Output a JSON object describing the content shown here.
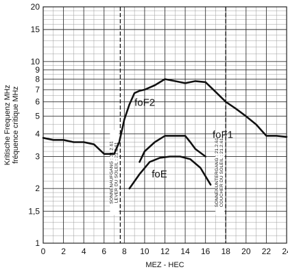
{
  "chart_data": {
    "type": "line",
    "xlabel": "MEZ - HEC",
    "ylabel_lines": [
      "Kritische Frequenz MHz",
      "fréquence critique MHz"
    ],
    "x_ticks": [
      0,
      2,
      4,
      6,
      8,
      10,
      12,
      14,
      16,
      18,
      20,
      22,
      24
    ],
    "x_tick_labels": [
      "0",
      "2",
      "4",
      "6",
      "8",
      "10",
      "12",
      "14",
      "16",
      "18",
      "20",
      "22",
      "24"
    ],
    "xlim": [
      0,
      24
    ],
    "ylim": [
      1,
      20
    ],
    "y_scale": "log",
    "y_ticks": [
      1,
      1.5,
      2,
      3,
      4,
      5,
      6,
      7,
      8,
      9,
      10,
      15,
      20
    ],
    "y_tick_labels": [
      "1",
      "1,5",
      "2",
      "3",
      "4",
      "5",
      "6",
      "7",
      "8",
      "9",
      "10",
      "15",
      "20"
    ],
    "grid": true,
    "series": [
      {
        "name": "foF2",
        "label_at": [
          9.0,
          5.7
        ],
        "x": [
          0,
          1,
          2,
          3,
          4,
          5,
          6,
          6.5,
          7,
          7.5,
          8,
          8.5,
          9,
          9.5,
          10,
          11,
          12,
          13,
          14,
          15,
          16,
          17,
          18,
          19,
          20,
          21,
          22,
          23,
          24
        ],
        "y": [
          3.8,
          3.7,
          3.7,
          3.6,
          3.6,
          3.5,
          3.1,
          3.1,
          3.1,
          3.6,
          4.8,
          5.8,
          6.7,
          6.9,
          7.0,
          7.4,
          8.0,
          7.8,
          7.6,
          7.8,
          7.7,
          6.8,
          6.0,
          5.5,
          5.0,
          4.5,
          3.9,
          3.9,
          3.85
        ]
      },
      {
        "name": "foF1",
        "label_at": [
          16.7,
          3.8
        ],
        "x": [
          9.5,
          10,
          11,
          12,
          13,
          14,
          14.5,
          15,
          16
        ],
        "y": [
          2.8,
          3.2,
          3.6,
          3.9,
          3.9,
          3.9,
          3.6,
          3.3,
          3.0
        ]
      },
      {
        "name": "foE",
        "label_at": [
          10.7,
          2.3
        ],
        "x": [
          8.5,
          9.5,
          10.5,
          11.5,
          12.5,
          13.5,
          14.5,
          15.5,
          16.5
        ],
        "y": [
          2.0,
          2.4,
          2.8,
          2.95,
          3.0,
          3.0,
          2.9,
          2.6,
          2.1
        ]
      }
    ],
    "markers": [
      {
        "x": 7.6,
        "label_lines": [
          "SONNENAUFGANG : 21.2.61",
          "LEVER DU SOLEIL : 21.2.61"
        ]
      },
      {
        "x": 18.0,
        "label_lines": [
          "SONNENUNTERGANG : 21.2.61",
          "COUCHER DU SOLEIL : 21.2.61"
        ]
      }
    ]
  }
}
